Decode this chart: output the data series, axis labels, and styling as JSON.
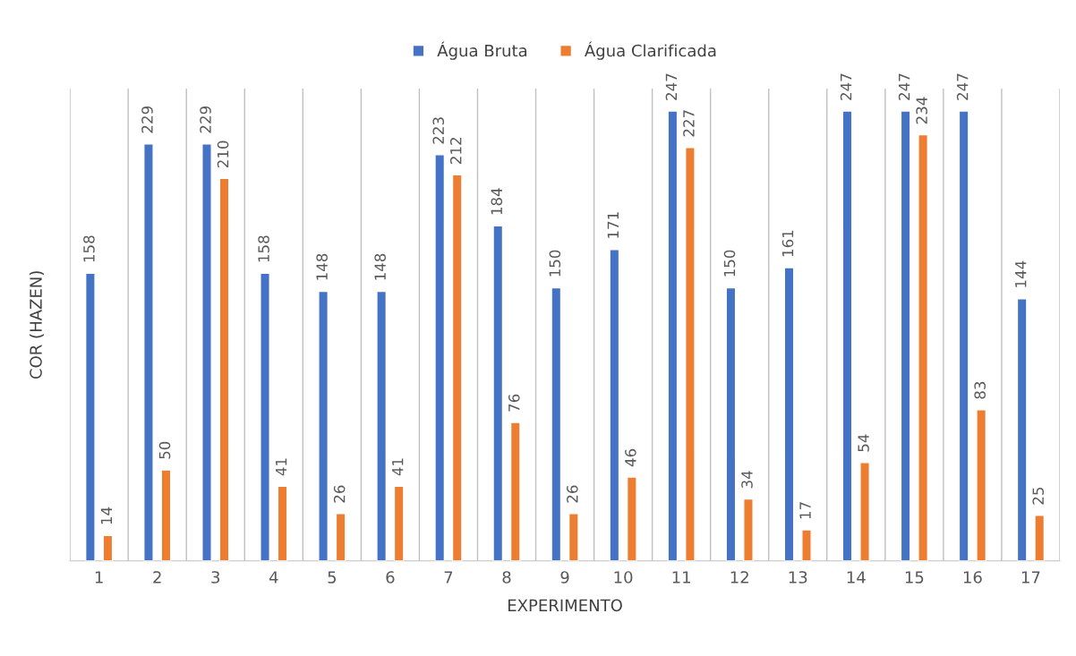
{
  "chart_data": {
    "type": "bar",
    "xlabel": "EXPERIMENTO",
    "ylabel": "COR (HAZEN)",
    "categories": [
      "1",
      "2",
      "3",
      "4",
      "5",
      "6",
      "7",
      "8",
      "9",
      "10",
      "11",
      "12",
      "13",
      "14",
      "15",
      "16",
      "17"
    ],
    "series": [
      {
        "name": "Água Bruta",
        "color": "#4472c4",
        "values": [
          158,
          229,
          229,
          158,
          148,
          148,
          223,
          184,
          150,
          171,
          247,
          150,
          161,
          247,
          247,
          247,
          144
        ]
      },
      {
        "name": "Água Clarificada",
        "color": "#ed7d31",
        "values": [
          14,
          50,
          210,
          41,
          26,
          41,
          212,
          76,
          26,
          46,
          227,
          34,
          17,
          54,
          234,
          83,
          25
        ]
      }
    ],
    "data_labels": true,
    "grid": "x",
    "legend": "top",
    "tick_labels": "x"
  }
}
